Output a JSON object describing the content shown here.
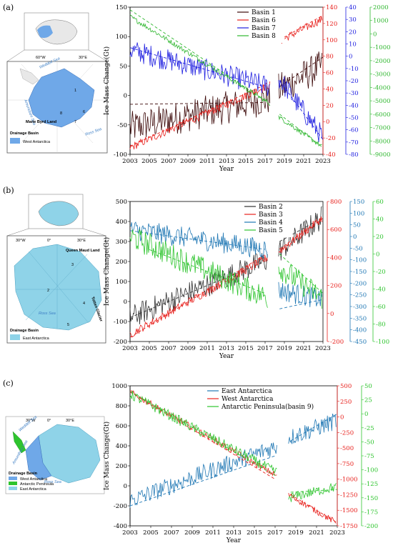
{
  "panels": [
    {
      "label": "(a)",
      "xlabel": "Year",
      "ylabel": "Ice Mass Change(Gt)",
      "map": {
        "legend_title": "Drainage Basin",
        "legend_item": "West Antarctica",
        "lon_labels": [
          "60°W",
          "30°E"
        ],
        "places": [
          "Weddell Sea",
          "Amundsen Sea",
          "Ross Sea",
          "Marie Byrd Land"
        ],
        "basin_numbers": [
          "1",
          "6",
          "7",
          "8"
        ]
      }
    },
    {
      "label": "(b)",
      "xlabel": "Year",
      "ylabel": "Ice Mass Change(Gt)",
      "map": {
        "legend_title": "Drainage Basin",
        "legend_item": "East Antarctica",
        "lon_labels": [
          "30°W",
          "0°",
          "30°E"
        ],
        "places": [
          "Queen Maud Land",
          "Ross Sea",
          "Totten Glacier"
        ],
        "basin_numbers": [
          "3",
          "2",
          "4",
          "5"
        ]
      }
    },
    {
      "label": "(c)",
      "xlabel": "Year",
      "ylabel": "Ice Mass Change(Gt)",
      "map": {
        "legend_title": "Drainage Basin",
        "legend_items": [
          "West Antarctica",
          "Antarctic Peninsula",
          "East Antarctica"
        ],
        "lon_labels": [
          "30°W",
          "0°",
          "30°E"
        ],
        "places": [
          "Weddell Sea",
          "Amundsen Sea",
          "Ross Sea"
        ]
      }
    }
  ],
  "colors": {
    "basin1": "#3d0a0a",
    "basin6": "#e8201c",
    "basin7": "#1f1fe0",
    "basin8": "#2fb72f",
    "basin2": "#333333",
    "basin3": "#e8201c",
    "basin4": "#1f77b4",
    "basin5": "#2ec42e",
    "east": "#1f77b4",
    "west": "#e8201c",
    "peninsula": "#2ec42e",
    "trend_yellow": "#d9d91a",
    "map_blue": "#6fa8e8",
    "map_light": "#8fd3e8"
  },
  "chart_data": [
    {
      "type": "line",
      "title": "",
      "xlabel": "Year",
      "xlim": [
        2003,
        2023
      ],
      "xticks": [
        2003,
        2005,
        2007,
        2009,
        2011,
        2013,
        2015,
        2017,
        2019,
        2021,
        2023
      ],
      "gap": [
        2017.5,
        2018.4
      ],
      "axes": [
        {
          "id": "y1",
          "label": "Ice Mass Change(Gt)",
          "ylim": [
            -100,
            150
          ],
          "ticks": [
            -100,
            -50,
            0,
            50,
            100,
            150
          ],
          "color": "#000000"
        },
        {
          "id": "y2",
          "ylim": [
            -40,
            140
          ],
          "ticks": [
            -40,
            -20,
            0,
            20,
            40,
            60,
            80,
            100,
            120,
            140
          ],
          "color": "#e8201c"
        },
        {
          "id": "y3",
          "ylim": [
            -80,
            40
          ],
          "ticks": [
            -80,
            -70,
            -60,
            -50,
            -40,
            -30,
            -20,
            -10,
            0,
            10,
            20,
            30,
            40
          ],
          "color": "#1f1fe0"
        },
        {
          "id": "y4",
          "ylim": [
            -9000,
            2000
          ],
          "ticks": [
            -9000,
            -8000,
            -7000,
            -6000,
            -5000,
            -4000,
            -3000,
            -2000,
            -1000,
            0,
            1000,
            2000
          ],
          "color": "#2fb72f"
        }
      ],
      "series": [
        {
          "name": "Basin 1",
          "axis": "y1",
          "color": "#3d0a0a",
          "start": -55,
          "end_gap": -5,
          "after_start": 10,
          "end": 50,
          "noise": 28,
          "trend": [
            [
              2003,
              -15
            ],
            [
              2017,
              -12
            ]
          ],
          "trend2": [
            [
              2018.5,
              15
            ],
            [
              2023,
              65
            ]
          ]
        },
        {
          "name": "Basin 6",
          "axis": "y2",
          "color": "#e8201c",
          "start": -32,
          "end_gap": 45,
          "after_start": 98,
          "end": 125,
          "noise": 5,
          "trend": [
            [
              2003,
              -30
            ],
            [
              2017,
              45
            ]
          ],
          "trend2": [
            [
              2018.5,
              100
            ],
            [
              2023,
              130
            ]
          ]
        },
        {
          "name": "Basin 7",
          "axis": "y3",
          "color": "#1f1fe0",
          "start": 5,
          "end_gap": -25,
          "after_start": -18,
          "end": -65,
          "noise": 9,
          "trend": [
            [
              2003,
              7
            ],
            [
              2017,
              -25
            ]
          ],
          "trend2": [
            [
              2018.5,
              -20
            ],
            [
              2023,
              -68
            ]
          ]
        },
        {
          "name": "Basin 8",
          "axis": "y4",
          "color": "#2fb72f",
          "start": 1300,
          "end_gap": -5200,
          "after_start": -6200,
          "end": -8400,
          "noise": 180,
          "trend": [
            [
              2003,
              1800
            ],
            [
              2017,
              -5000
            ]
          ],
          "trend2": [
            [
              2018.5,
              -6000
            ],
            [
              2023,
              -8500
            ]
          ]
        }
      ]
    },
    {
      "type": "line",
      "title": "",
      "xlabel": "Year",
      "xlim": [
        2003,
        2023
      ],
      "xticks": [
        2003,
        2005,
        2007,
        2009,
        2011,
        2013,
        2015,
        2017,
        2019,
        2021,
        2023
      ],
      "gap": [
        2017.3,
        2018.4
      ],
      "axes": [
        {
          "id": "y1",
          "label": "Ice Mass Change(Gt)",
          "ylim": [
            -200,
            500
          ],
          "ticks": [
            -200,
            -100,
            0,
            100,
            200,
            300,
            400,
            500
          ],
          "color": "#000000"
        },
        {
          "id": "y2",
          "ylim": [
            -200,
            800
          ],
          "ticks": [
            -200,
            0,
            200,
            400,
            600,
            800
          ],
          "color": "#e8201c"
        },
        {
          "id": "y3",
          "ylim": [
            -450,
            150
          ],
          "ticks": [
            -450,
            -400,
            -350,
            -300,
            -250,
            -200,
            -150,
            -100,
            -50,
            0,
            50,
            100,
            150
          ],
          "color": "#1f77b4"
        },
        {
          "id": "y4",
          "ylim": [
            -100,
            60
          ],
          "ticks": [
            -100,
            -80,
            -60,
            -40,
            -20,
            0,
            20,
            40,
            60
          ],
          "color": "#2ec42e"
        }
      ],
      "series": [
        {
          "name": "Basin 2",
          "axis": "y1",
          "color": "#333333",
          "start": -80,
          "end_gap": 210,
          "after_start": 250,
          "end": 420,
          "noise": 60,
          "trend": [
            [
              2003,
              -80
            ],
            [
              2017,
              200
            ]
          ],
          "trend2": [
            [
              2018.5,
              300
            ],
            [
              2023,
              420
            ]
          ]
        },
        {
          "name": "Basin 3",
          "axis": "y2",
          "color": "#e8201c",
          "start": -150,
          "end_gap": 400,
          "after_start": 440,
          "end": 680,
          "noise": 30,
          "trend": [
            [
              2003,
              -170
            ],
            [
              2017,
              420
            ]
          ],
          "trend2": [
            [
              2018.5,
              460
            ],
            [
              2023,
              680
            ]
          ]
        },
        {
          "name": "Basin 4",
          "axis": "y3",
          "color": "#1f77b4",
          "start": 30,
          "end_gap": -55,
          "after_start": -230,
          "end": -270,
          "noise": 45,
          "trend": [
            [
              2003,
              25
            ],
            [
              2017,
              -55
            ]
          ],
          "trend2": [
            [
              2018.5,
              -310
            ],
            [
              2023,
              -270
            ]
          ]
        },
        {
          "name": "Basin 5",
          "axis": "y4",
          "color": "#2ec42e",
          "start": 20,
          "end_gap": -50,
          "after_start": -15,
          "end": -50,
          "noise": 14,
          "trend": [
            [
              2005,
              5
            ],
            [
              2017,
              -45
            ]
          ],
          "trend2": [
            [
              2018.5,
              0
            ],
            [
              2023,
              -45
            ]
          ]
        }
      ]
    },
    {
      "type": "line",
      "title": "",
      "xlabel": "Year",
      "xlim": [
        2003,
        2023
      ],
      "xticks": [
        2003,
        2005,
        2007,
        2009,
        2011,
        2013,
        2015,
        2017,
        2019,
        2021,
        2023
      ],
      "gap": [
        2017.2,
        2018.3
      ],
      "axes": [
        {
          "id": "y1",
          "label": "Ice Mass Change(Gt)",
          "ylim": [
            -400,
            1000
          ],
          "ticks": [
            -400,
            -200,
            0,
            200,
            400,
            600,
            800,
            1000
          ],
          "color": "#000000"
        },
        {
          "id": "y2",
          "ylim": [
            -1750,
            500
          ],
          "ticks": [
            -1750,
            -1500,
            -1250,
            -1000,
            -750,
            -500,
            -250,
            0,
            250,
            500
          ],
          "color": "#e8201c"
        },
        {
          "id": "y3",
          "ylim": [
            -200,
            50
          ],
          "ticks": [
            -200,
            -175,
            -150,
            -125,
            -100,
            -75,
            -50,
            -25,
            0,
            25,
            50
          ],
          "color": "#2ec42e"
        }
      ],
      "series": [
        {
          "name": "East Antarctica",
          "axis": "y1",
          "color": "#1f77b4",
          "start": -150,
          "end_gap": 400,
          "after_start": 480,
          "end": 650,
          "noise": 90,
          "trend": [
            [
              2003,
              -200
            ],
            [
              2017,
              300
            ]
          ],
          "trend2": [
            [
              2018.5,
              450
            ],
            [
              2023,
              720
            ]
          ]
        },
        {
          "name": "West Antarctica",
          "axis": "y2",
          "color": "#e8201c",
          "start": 400,
          "end_gap": -950,
          "after_start": -1250,
          "end": -1700,
          "noise": 50,
          "trend": [
            [
              2003,
              400
            ],
            [
              2017,
              -1000
            ]
          ],
          "trend2": [
            [
              2018.5,
              -1250
            ],
            [
              2023,
              -1700
            ]
          ]
        },
        {
          "name": "Antarctic Peninsula(basin 9)",
          "axis": "y3",
          "color": "#2ec42e",
          "start": 35,
          "end_gap": -105,
          "after_start": -150,
          "end": -130,
          "noise": 9,
          "trend": [
            [
              2003,
              40
            ],
            [
              2017,
              -110
            ]
          ],
          "trend2": [
            [
              2018.5,
              -140
            ],
            [
              2023,
              -135
            ]
          ]
        }
      ]
    }
  ]
}
